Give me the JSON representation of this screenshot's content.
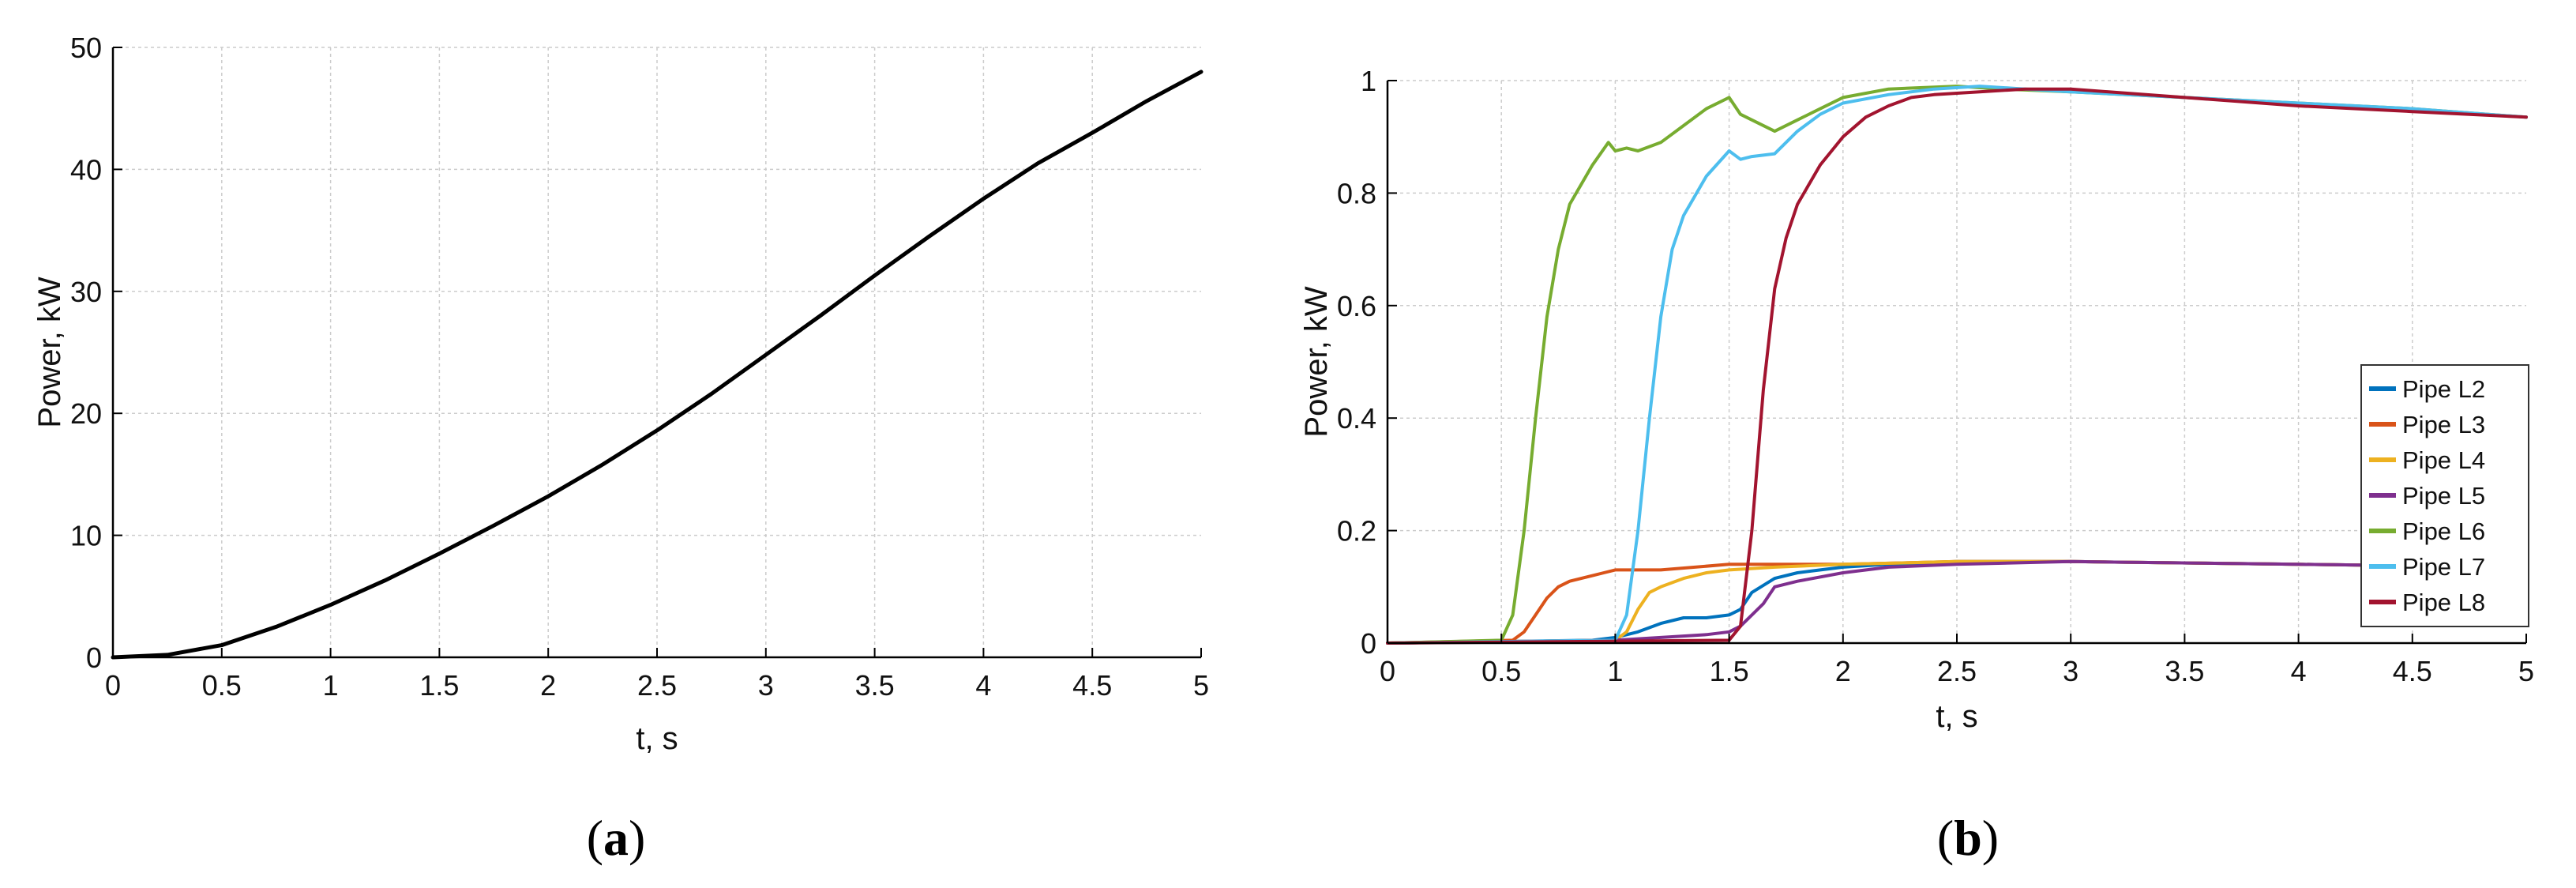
{
  "panels": [
    {
      "label_open": "(",
      "label_letter": "a",
      "label_close": ")"
    },
    {
      "label_open": "(",
      "label_letter": "b",
      "label_close": ")"
    }
  ],
  "chart_data": [
    {
      "type": "line",
      "title": "",
      "xlabel": "t, s",
      "ylabel": "Power, kW",
      "xlim": [
        0,
        5
      ],
      "ylim": [
        0,
        50
      ],
      "xticks": [
        "0",
        "0.5",
        "1",
        "1.5",
        "2",
        "2.5",
        "3",
        "3.5",
        "4",
        "4.5",
        "5"
      ],
      "yticks": [
        "0",
        "10",
        "20",
        "30",
        "40",
        "50"
      ],
      "grid": true,
      "colors": {
        "line": "#000000",
        "grid": "#c8c8c8"
      },
      "series": [
        {
          "x": [
            0,
            0.25,
            0.5,
            0.75,
            1.0,
            1.25,
            1.5,
            1.75,
            2.0,
            2.25,
            2.5,
            2.75,
            3.0,
            3.25,
            3.5,
            3.75,
            4.0,
            4.25,
            4.5,
            4.75,
            5.0
          ],
          "y": [
            0,
            0.2,
            1.0,
            2.5,
            4.3,
            6.3,
            8.5,
            10.8,
            13.2,
            15.8,
            18.6,
            21.6,
            24.8,
            28.0,
            31.3,
            34.5,
            37.6,
            40.5,
            43.0,
            45.6,
            48.0
          ]
        }
      ]
    },
    {
      "type": "line",
      "title": "",
      "xlabel": "t, s",
      "ylabel": "Power, kW",
      "xlim": [
        0,
        5
      ],
      "ylim": [
        0,
        1
      ],
      "xticks": [
        "0",
        "0.5",
        "1",
        "1.5",
        "2",
        "2.5",
        "3",
        "3.5",
        "4",
        "4.5",
        "5"
      ],
      "yticks": [
        "0",
        "0.2",
        "0.4",
        "0.6",
        "0.8",
        "1"
      ],
      "grid": true,
      "legend_position": "right",
      "series": [
        {
          "name": "Pipe L2",
          "color": "#0072BD",
          "x": [
            0,
            0.9,
            1.0,
            1.1,
            1.2,
            1.3,
            1.4,
            1.5,
            1.55,
            1.6,
            1.7,
            1.8,
            1.9,
            2.0,
            2.2,
            2.5,
            3.0,
            4.0,
            5.0
          ],
          "y": [
            0,
            0.005,
            0.01,
            0.02,
            0.035,
            0.045,
            0.045,
            0.05,
            0.06,
            0.09,
            0.115,
            0.125,
            0.13,
            0.135,
            0.14,
            0.145,
            0.145,
            0.14,
            0.135
          ]
        },
        {
          "name": "Pipe L3",
          "color": "#D95319",
          "x": [
            0,
            0.55,
            0.6,
            0.65,
            0.7,
            0.75,
            0.8,
            0.9,
            1.0,
            1.2,
            1.5,
            2.0,
            2.5,
            3.0,
            4.0,
            5.0
          ],
          "y": [
            0,
            0.005,
            0.02,
            0.05,
            0.08,
            0.1,
            0.11,
            0.12,
            0.13,
            0.13,
            0.14,
            0.14,
            0.145,
            0.145,
            0.14,
            0.135
          ]
        },
        {
          "name": "Pipe L4",
          "color": "#EDB120",
          "x": [
            0,
            1.0,
            1.05,
            1.1,
            1.15,
            1.2,
            1.3,
            1.4,
            1.5,
            1.7,
            2.0,
            2.5,
            3.0,
            4.0,
            5.0
          ],
          "y": [
            0,
            0.005,
            0.02,
            0.06,
            0.09,
            0.1,
            0.115,
            0.125,
            0.13,
            0.135,
            0.14,
            0.145,
            0.145,
            0.14,
            0.135
          ]
        },
        {
          "name": "Pipe L5",
          "color": "#7E2F8E",
          "x": [
            0,
            1.0,
            1.2,
            1.4,
            1.5,
            1.55,
            1.6,
            1.65,
            1.7,
            1.8,
            2.0,
            2.2,
            2.5,
            3.0,
            4.0,
            5.0
          ],
          "y": [
            0,
            0.005,
            0.01,
            0.015,
            0.02,
            0.03,
            0.05,
            0.07,
            0.1,
            0.11,
            0.125,
            0.135,
            0.14,
            0.145,
            0.14,
            0.135
          ]
        },
        {
          "name": "Pipe L6",
          "color": "#77AC30",
          "x": [
            0,
            0.5,
            0.55,
            0.6,
            0.65,
            0.7,
            0.75,
            0.8,
            0.9,
            0.97,
            1.0,
            1.05,
            1.1,
            1.2,
            1.3,
            1.4,
            1.5,
            1.55,
            1.6,
            1.7,
            1.8,
            1.9,
            2.0,
            2.2,
            2.5,
            2.7,
            3.0,
            3.5,
            4.0,
            4.5,
            5.0
          ],
          "y": [
            0,
            0.005,
            0.05,
            0.2,
            0.4,
            0.58,
            0.7,
            0.78,
            0.85,
            0.89,
            0.875,
            0.88,
            0.875,
            0.89,
            0.92,
            0.95,
            0.97,
            0.94,
            0.93,
            0.91,
            0.93,
            0.95,
            0.97,
            0.985,
            0.99,
            0.985,
            0.98,
            0.97,
            0.96,
            0.95,
            0.935
          ]
        },
        {
          "name": "Pipe L7",
          "color": "#4DBEEE",
          "x": [
            0,
            1.0,
            1.05,
            1.1,
            1.15,
            1.2,
            1.25,
            1.3,
            1.4,
            1.5,
            1.55,
            1.6,
            1.7,
            1.8,
            1.9,
            2.0,
            2.2,
            2.4,
            2.6,
            2.8,
            3.0,
            3.5,
            4.0,
            4.5,
            5.0
          ],
          "y": [
            0,
            0.005,
            0.05,
            0.2,
            0.4,
            0.58,
            0.7,
            0.76,
            0.83,
            0.875,
            0.86,
            0.865,
            0.87,
            0.91,
            0.94,
            0.96,
            0.975,
            0.985,
            0.99,
            0.985,
            0.98,
            0.97,
            0.96,
            0.95,
            0.935
          ]
        },
        {
          "name": "Pipe L8",
          "color": "#A2142F",
          "x": [
            0,
            1.5,
            1.55,
            1.6,
            1.65,
            1.7,
            1.75,
            1.8,
            1.9,
            2.0,
            2.1,
            2.2,
            2.3,
            2.4,
            2.6,
            2.8,
            3.0,
            3.5,
            4.0,
            4.5,
            5.0
          ],
          "y": [
            0,
            0.005,
            0.03,
            0.2,
            0.45,
            0.63,
            0.72,
            0.78,
            0.85,
            0.9,
            0.935,
            0.955,
            0.97,
            0.975,
            0.98,
            0.985,
            0.985,
            0.97,
            0.955,
            0.945,
            0.935
          ]
        }
      ]
    }
  ]
}
